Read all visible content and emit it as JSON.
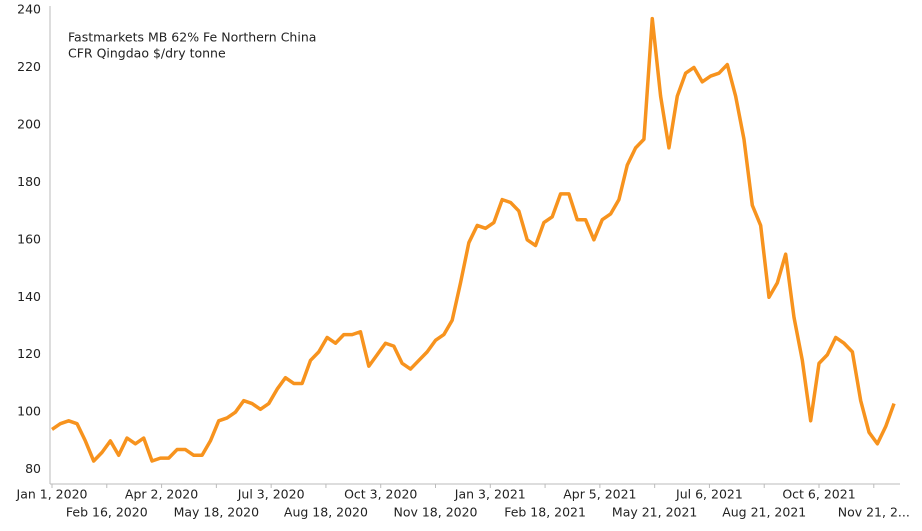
{
  "chart_data": {
    "type": "line",
    "title": "Fastmarkets MB 62% Fe Northern China",
    "subtitle": "CFR Qingdao $/dry tonne",
    "color": "#f7931e",
    "x": [
      "2020-01-01",
      "2020-01-08",
      "2020-01-15",
      "2020-01-22",
      "2020-01-29",
      "2020-02-05",
      "2020-02-12",
      "2020-02-19",
      "2020-02-26",
      "2020-03-04",
      "2020-03-11",
      "2020-03-18",
      "2020-03-25",
      "2020-04-01",
      "2020-04-08",
      "2020-04-15",
      "2020-04-22",
      "2020-04-29",
      "2020-05-06",
      "2020-05-13",
      "2020-05-20",
      "2020-05-27",
      "2020-06-03",
      "2020-06-10",
      "2020-06-17",
      "2020-06-24",
      "2020-07-01",
      "2020-07-08",
      "2020-07-15",
      "2020-07-22",
      "2020-07-29",
      "2020-08-05",
      "2020-08-12",
      "2020-08-19",
      "2020-08-26",
      "2020-09-02",
      "2020-09-09",
      "2020-09-16",
      "2020-09-23",
      "2020-09-30",
      "2020-10-07",
      "2020-10-14",
      "2020-10-21",
      "2020-10-28",
      "2020-11-04",
      "2020-11-11",
      "2020-11-18",
      "2020-11-25",
      "2020-12-02",
      "2020-12-09",
      "2020-12-16",
      "2020-12-23",
      "2020-12-30",
      "2021-01-06",
      "2021-01-13",
      "2021-01-20",
      "2021-01-27",
      "2021-02-03",
      "2021-02-10",
      "2021-02-17",
      "2021-02-24",
      "2021-03-03",
      "2021-03-10",
      "2021-03-17",
      "2021-03-24",
      "2021-03-31",
      "2021-04-07",
      "2021-04-14",
      "2021-04-21",
      "2021-04-28",
      "2021-05-05",
      "2021-05-12",
      "2021-05-19",
      "2021-05-26",
      "2021-06-02",
      "2021-06-09",
      "2021-06-16",
      "2021-06-23",
      "2021-06-30",
      "2021-07-07",
      "2021-07-14",
      "2021-07-21",
      "2021-07-28",
      "2021-08-04",
      "2021-08-11",
      "2021-08-18",
      "2021-08-25",
      "2021-09-01",
      "2021-09-08",
      "2021-09-15",
      "2021-09-22",
      "2021-09-29",
      "2021-10-06",
      "2021-10-13",
      "2021-10-20",
      "2021-10-27",
      "2021-11-03",
      "2021-11-10",
      "2021-11-17",
      "2021-11-24",
      "2021-12-01",
      "2021-12-08"
    ],
    "values": [
      94,
      96,
      97,
      96,
      90,
      83,
      86,
      90,
      85,
      91,
      89,
      91,
      83,
      84,
      84,
      87,
      87,
      85,
      85,
      90,
      97,
      98,
      100,
      104,
      103,
      101,
      103,
      108,
      112,
      110,
      110,
      118,
      121,
      126,
      124,
      127,
      127,
      128,
      116,
      120,
      124,
      123,
      117,
      115,
      118,
      121,
      125,
      127,
      132,
      145,
      159,
      165,
      164,
      166,
      174,
      173,
      170,
      160,
      158,
      166,
      168,
      176,
      176,
      167,
      167,
      160,
      167,
      169,
      174,
      186,
      192,
      195,
      237,
      210,
      192,
      210,
      218,
      220,
      215,
      217,
      218,
      221,
      210,
      195,
      172,
      165,
      140,
      145,
      155,
      133,
      118,
      97,
      117,
      120,
      126,
      124,
      121,
      104,
      93,
      89,
      95,
      103
    ],
    "xlim": [
      "2020-01-01",
      "2021-12-13"
    ],
    "xticks": [
      {
        "value": "2020-01-01",
        "label": "Jan 1, 2020"
      },
      {
        "value": "2020-02-16",
        "label": "Feb 16, 2020"
      },
      {
        "value": "2020-04-02",
        "label": "Apr 2, 2020"
      },
      {
        "value": "2020-05-18",
        "label": "May 18, 2020"
      },
      {
        "value": "2020-07-03",
        "label": "Jul 3, 2020"
      },
      {
        "value": "2020-08-18",
        "label": "Aug 18, 2020"
      },
      {
        "value": "2020-10-03",
        "label": "Oct 3, 2020"
      },
      {
        "value": "2020-11-18",
        "label": "Nov 18, 2020"
      },
      {
        "value": "2021-01-03",
        "label": "Jan 3, 2021"
      },
      {
        "value": "2021-02-18",
        "label": "Feb 18, 2021"
      },
      {
        "value": "2021-04-05",
        "label": "Apr 5, 2021"
      },
      {
        "value": "2021-05-21",
        "label": "May 21, 2021"
      },
      {
        "value": "2021-07-06",
        "label": "Jul 6, 2021"
      },
      {
        "value": "2021-08-21",
        "label": "Aug 21, 2021"
      },
      {
        "value": "2021-10-06",
        "label": "Oct 6, 2021"
      },
      {
        "value": "2021-11-21",
        "label": "Nov 21, 2..."
      }
    ],
    "ylim": [
      75,
      240
    ],
    "yticks": [
      80,
      100,
      120,
      140,
      160,
      180,
      200,
      220,
      240
    ],
    "grid": false
  }
}
